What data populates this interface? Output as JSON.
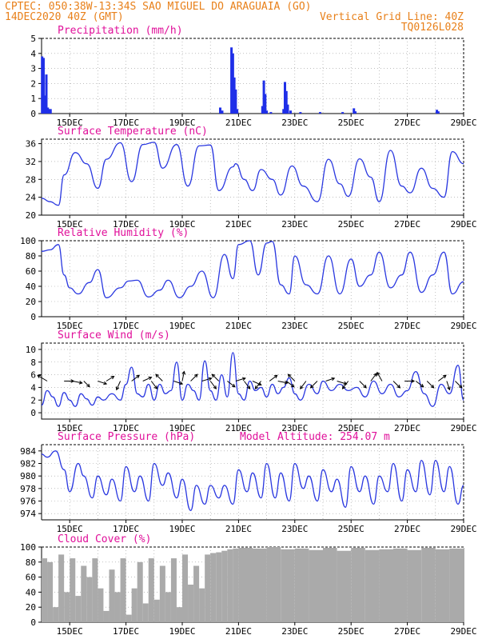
{
  "header": {
    "line1": "CPTEC:  050:38W-13:34S  SAO MIGUEL DO ARAGUAIA (GO)",
    "line2_left": "14DEC2020 40Z (GMT)",
    "line2_right": "Vertical Grid Line: 40Z",
    "line3_right": "TQ0126L028"
  },
  "colors": {
    "header": "#e8801a",
    "panel_title": "#e0109a",
    "line": "#2a38e0",
    "precip_bar": "#1f2fe8",
    "cloud_fill": "#aaaaaa"
  },
  "chart_data": [
    {
      "type": "bar",
      "title": "Precipitation (mm/h)",
      "xlabel": "",
      "ylabel": "",
      "ylim": [
        0,
        5
      ],
      "yticks": [
        "0",
        "1",
        "2",
        "3",
        "4",
        "5"
      ],
      "xticks": [
        "15DEC",
        "17DEC",
        "19DEC",
        "21DEC",
        "23DEC",
        "25DEC",
        "27DEC",
        "29DEC"
      ],
      "xrange_days": [
        14,
        29
      ],
      "grid": true,
      "x_days": [
        14.02,
        14.07,
        14.12,
        14.17,
        14.22,
        14.27,
        14.32,
        20.35,
        20.42,
        20.75,
        20.8,
        20.85,
        20.9,
        20.95,
        21.85,
        21.9,
        21.95,
        22.0,
        22.15,
        22.6,
        22.65,
        22.7,
        22.75,
        22.85,
        23.2,
        23.9,
        24.7,
        25.1,
        25.15,
        28.05,
        28.1
      ],
      "values": [
        3.8,
        3.7,
        1.2,
        2.6,
        0.4,
        0.3,
        0.3,
        0.4,
        0.2,
        4.4,
        4.0,
        2.4,
        1.6,
        0.3,
        0.5,
        2.2,
        1.3,
        0.2,
        0.1,
        0.3,
        2.1,
        1.5,
        0.6,
        0.2,
        0.1,
        0.1,
        0.1,
        0.35,
        0.15,
        0.25,
        0.15
      ]
    },
    {
      "type": "line",
      "title": "Surface Temperature (nC)",
      "ylim": [
        20,
        37
      ],
      "yticks": [
        "20",
        "24",
        "28",
        "32",
        "36"
      ],
      "xticks": [
        "15DEC",
        "17DEC",
        "19DEC",
        "21DEC",
        "23DEC",
        "25DEC",
        "27DEC",
        "29DEC"
      ],
      "xrange_days": [
        14,
        29
      ],
      "grid": true,
      "x_days": [
        14.0,
        14.3,
        14.6,
        14.8,
        15.2,
        15.6,
        16.0,
        16.3,
        16.8,
        17.2,
        17.6,
        18.0,
        18.3,
        18.8,
        19.2,
        19.6,
        20.0,
        20.3,
        20.8,
        20.9,
        21.2,
        21.5,
        21.8,
        22.2,
        22.5,
        22.9,
        23.3,
        23.8,
        24.2,
        24.6,
        24.9,
        25.3,
        25.7,
        26.0,
        26.4,
        26.8,
        27.1,
        27.5,
        27.9,
        28.3,
        28.6,
        29.0
      ],
      "values": [
        23.8,
        23.0,
        22.2,
        29.0,
        34.0,
        31.5,
        26.0,
        32.5,
        36.2,
        27.5,
        35.8,
        36.3,
        30.5,
        35.8,
        26.5,
        35.5,
        35.7,
        25.5,
        30.8,
        31.5,
        28.0,
        25.5,
        30.2,
        28.0,
        24.5,
        31.0,
        26.5,
        23.0,
        32.5,
        27.0,
        24.2,
        32.6,
        28.5,
        23.0,
        34.5,
        26.5,
        25.0,
        30.5,
        26.0,
        24.0,
        34.2,
        31.5
      ]
    },
    {
      "type": "line",
      "title": "Relative Humidity (%)",
      "ylim": [
        0,
        100
      ],
      "yticks": [
        "0",
        "20",
        "40",
        "60",
        "80",
        "100"
      ],
      "xticks": [
        "15DEC",
        "17DEC",
        "19DEC",
        "21DEC",
        "23DEC",
        "25DEC",
        "27DEC",
        "29DEC"
      ],
      "xrange_days": [
        14,
        29
      ],
      "grid": true,
      "x_days": [
        14.0,
        14.3,
        14.6,
        14.8,
        15.0,
        15.3,
        15.7,
        16.0,
        16.3,
        16.8,
        17.1,
        17.4,
        17.8,
        18.2,
        18.5,
        18.9,
        19.3,
        19.7,
        20.1,
        20.5,
        20.8,
        21.0,
        21.4,
        21.7,
        22.0,
        22.2,
        22.5,
        22.8,
        23.0,
        23.4,
        23.8,
        24.2,
        24.6,
        25.0,
        25.3,
        25.7,
        26.0,
        26.4,
        26.8,
        27.1,
        27.5,
        27.9,
        28.3,
        28.6,
        29.0
      ],
      "values": [
        86,
        88,
        95,
        55,
        38,
        30,
        45,
        62,
        25,
        38,
        47,
        48,
        26,
        35,
        48,
        25,
        40,
        60,
        25,
        82,
        50,
        95,
        100,
        55,
        97,
        99,
        42,
        30,
        80,
        42,
        30,
        80,
        30,
        76,
        40,
        55,
        85,
        38,
        55,
        85,
        32,
        55,
        85,
        30,
        46
      ]
    },
    {
      "type": "line",
      "title": "Surface Wind (m/s)",
      "ylim": [
        -1,
        11
      ],
      "yticks": [
        "0",
        "2",
        "4",
        "6",
        "8",
        "10"
      ],
      "xticks": [
        "15DEC",
        "17DEC",
        "19DEC",
        "21DEC",
        "23DEC",
        "25DEC",
        "27DEC",
        "29DEC"
      ],
      "xrange_days": [
        14,
        29
      ],
      "grid": true,
      "x_days": [
        14.0,
        14.2,
        14.4,
        14.6,
        14.8,
        15.0,
        15.2,
        15.4,
        15.6,
        15.8,
        16.0,
        16.2,
        16.5,
        16.8,
        17.0,
        17.2,
        17.4,
        17.6,
        17.8,
        18.0,
        18.2,
        18.4,
        18.6,
        18.8,
        19.0,
        19.2,
        19.4,
        19.6,
        19.8,
        20.0,
        20.2,
        20.4,
        20.6,
        20.8,
        21.0,
        21.2,
        21.4,
        21.6,
        21.8,
        22.0,
        22.2,
        22.4,
        22.6,
        22.8,
        23.0,
        23.2,
        23.5,
        23.8,
        24.0,
        24.3,
        24.6,
        24.9,
        25.2,
        25.5,
        25.8,
        26.1,
        26.4,
        26.7,
        27.0,
        27.3,
        27.6,
        27.9,
        28.2,
        28.5,
        28.8,
        29.0
      ],
      "values": [
        1.2,
        3.5,
        2.5,
        1.0,
        3.2,
        2.0,
        1.0,
        3.0,
        2.2,
        1.2,
        2.5,
        2.0,
        3.0,
        2.0,
        4.5,
        7.2,
        3.0,
        2.5,
        4.5,
        2.0,
        4.5,
        3.0,
        3.5,
        8.0,
        2.0,
        4.5,
        3.5,
        2.0,
        8.2,
        3.5,
        2.0,
        6.0,
        2.5,
        9.5,
        3.0,
        2.0,
        5.0,
        3.5,
        4.0,
        2.5,
        4.5,
        3.0,
        4.0,
        5.5,
        3.0,
        2.0,
        4.5,
        3.0,
        5.0,
        3.5,
        4.5,
        3.5,
        4.0,
        2.5,
        5.0,
        3.0,
        4.5,
        2.5,
        3.5,
        6.5,
        3.0,
        1.0,
        4.5,
        3.0,
        7.5,
        2.0
      ],
      "arrows": [
        {
          "day": 14.2,
          "dx": -1,
          "dy": -0.6
        },
        {
          "day": 14.8,
          "dx": 1,
          "dy": 0
        },
        {
          "day": 15.1,
          "dx": 1,
          "dy": 0.2
        },
        {
          "day": 15.5,
          "dx": 0.6,
          "dy": 0.6
        },
        {
          "day": 16.0,
          "dx": 0.9,
          "dy": 0.3
        },
        {
          "day": 16.3,
          "dx": 0.8,
          "dy": -0.5
        },
        {
          "day": 16.8,
          "dx": -0.4,
          "dy": 0.9
        },
        {
          "day": 17.2,
          "dx": 0.8,
          "dy": -0.6
        },
        {
          "day": 17.6,
          "dx": 0.9,
          "dy": -0.4
        },
        {
          "day": 17.9,
          "dx": 0.6,
          "dy": 0.8
        },
        {
          "day": 18.3,
          "dx": -0.7,
          "dy": -0.7
        },
        {
          "day": 18.7,
          "dx": 0.9,
          "dy": 0.3
        },
        {
          "day": 19.0,
          "dx": 0.2,
          "dy": -1
        },
        {
          "day": 19.3,
          "dx": 0.7,
          "dy": -0.7
        },
        {
          "day": 19.7,
          "dx": 1,
          "dy": -0.3
        },
        {
          "day": 20.0,
          "dx": 0.6,
          "dy": 0.8
        },
        {
          "day": 20.3,
          "dx": -0.7,
          "dy": -0.7
        },
        {
          "day": 20.6,
          "dx": 0.8,
          "dy": 0.6
        },
        {
          "day": 20.9,
          "dx": 1,
          "dy": -0.3
        },
        {
          "day": 21.2,
          "dx": 0.6,
          "dy": 0.8
        },
        {
          "day": 21.5,
          "dx": 0.9,
          "dy": 0.4
        },
        {
          "day": 21.8,
          "dx": -0.6,
          "dy": 0.8
        },
        {
          "day": 22.1,
          "dx": 0.8,
          "dy": -0.6
        },
        {
          "day": 22.4,
          "dx": 1,
          "dy": 0.2
        },
        {
          "day": 22.7,
          "dx": 0.8,
          "dy": 0.6
        },
        {
          "day": 23.0,
          "dx": -0.7,
          "dy": -0.7
        },
        {
          "day": 23.4,
          "dx": -0.6,
          "dy": 0.8
        },
        {
          "day": 23.8,
          "dx": -0.7,
          "dy": 0.7
        },
        {
          "day": 24.1,
          "dx": 0.9,
          "dy": -0.3
        },
        {
          "day": 24.5,
          "dx": 1,
          "dy": 0.3
        },
        {
          "day": 24.9,
          "dx": -0.6,
          "dy": 0.8
        },
        {
          "day": 25.3,
          "dx": 0.7,
          "dy": 0.7
        },
        {
          "day": 25.7,
          "dx": 0.6,
          "dy": -0.8
        },
        {
          "day": 26.1,
          "dx": -0.5,
          "dy": -0.9
        },
        {
          "day": 26.5,
          "dx": 0.7,
          "dy": 0.7
        },
        {
          "day": 26.9,
          "dx": 1,
          "dy": 0
        },
        {
          "day": 27.3,
          "dx": 0.8,
          "dy": 0.6
        },
        {
          "day": 27.7,
          "dx": 0.7,
          "dy": 0.7
        },
        {
          "day": 28.1,
          "dx": 0.8,
          "dy": -0.6
        },
        {
          "day": 28.4,
          "dx": 0.3,
          "dy": 0.9
        },
        {
          "day": 28.7,
          "dx": 0.7,
          "dy": 0.7
        }
      ]
    },
    {
      "type": "line",
      "title": "Surface Pressure (hPa)",
      "annotation": "Model Altitude: 254.07 m",
      "ylim": [
        973,
        985
      ],
      "yticks": [
        "974",
        "976",
        "978",
        "980",
        "982",
        "984"
      ],
      "xticks": [
        "15DEC",
        "17DEC",
        "19DEC",
        "21DEC",
        "23DEC",
        "25DEC",
        "27DEC",
        "29DEC"
      ],
      "xrange_days": [
        14,
        29
      ],
      "grid": true,
      "x_days": [
        14.0,
        14.2,
        14.5,
        14.8,
        15.0,
        15.3,
        15.5,
        15.8,
        16.0,
        16.3,
        16.5,
        16.8,
        17.0,
        17.3,
        17.5,
        17.8,
        18.0,
        18.3,
        18.5,
        18.8,
        19.0,
        19.3,
        19.5,
        19.8,
        20.0,
        20.3,
        20.5,
        20.8,
        21.0,
        21.3,
        21.5,
        21.8,
        22.0,
        22.3,
        22.5,
        22.8,
        23.0,
        23.3,
        23.5,
        23.8,
        24.0,
        24.3,
        24.5,
        24.8,
        25.0,
        25.3,
        25.5,
        25.8,
        26.0,
        26.3,
        26.5,
        26.8,
        27.0,
        27.3,
        27.5,
        27.8,
        28.0,
        28.3,
        28.5,
        28.8,
        29.0
      ],
      "values": [
        983.5,
        983.0,
        984.0,
        981.0,
        977.5,
        982.0,
        980.0,
        976.5,
        980.0,
        977.0,
        979.5,
        976.0,
        981.5,
        977.5,
        980.0,
        976.0,
        982.0,
        978.5,
        980.5,
        976.5,
        979.5,
        974.5,
        978.5,
        975.5,
        978.5,
        976.5,
        978.5,
        975.5,
        981.0,
        977.5,
        980.5,
        976.5,
        982.0,
        976.5,
        980.5,
        976.0,
        982.0,
        978.0,
        980.0,
        976.0,
        981.0,
        977.5,
        979.5,
        975.0,
        981.5,
        977.5,
        980.0,
        975.5,
        980.0,
        977.5,
        982.0,
        976.0,
        981.0,
        977.5,
        982.5,
        977.0,
        982.5,
        977.5,
        981.5,
        975.5,
        978.5
      ]
    },
    {
      "type": "area",
      "title": "Cloud Cover (%)",
      "ylim": [
        0,
        100
      ],
      "yticks": [
        "0",
        "20",
        "40",
        "60",
        "80",
        "100"
      ],
      "xticks": [
        "15DEC",
        "17DEC",
        "19DEC",
        "21DEC",
        "23DEC",
        "25DEC",
        "27DEC",
        "29DEC"
      ],
      "xrange_days": [
        14,
        29
      ],
      "grid": true,
      "x_days": [
        14.0,
        14.2,
        14.4,
        14.6,
        14.8,
        15.0,
        15.2,
        15.4,
        15.6,
        15.8,
        16.0,
        16.2,
        16.4,
        16.6,
        16.8,
        17.0,
        17.2,
        17.4,
        17.6,
        17.8,
        18.0,
        18.2,
        18.4,
        18.6,
        18.8,
        19.0,
        19.2,
        19.4,
        19.6,
        19.8,
        20.0,
        20.2,
        20.4,
        20.6,
        20.8,
        21.0,
        21.5,
        22.0,
        22.5,
        23.0,
        23.5,
        24.0,
        24.5,
        25.0,
        25.5,
        26.0,
        26.5,
        27.0,
        27.5,
        28.0,
        28.5,
        29.0
      ],
      "values": [
        85,
        80,
        20,
        90,
        40,
        85,
        35,
        75,
        60,
        85,
        45,
        15,
        70,
        40,
        85,
        10,
        45,
        80,
        25,
        85,
        30,
        75,
        40,
        85,
        20,
        90,
        50,
        75,
        45,
        90,
        92,
        93,
        95,
        97,
        98,
        99,
        98,
        100,
        97,
        98,
        96,
        99,
        95,
        99,
        96,
        97,
        98,
        96,
        99,
        97,
        98,
        99
      ]
    }
  ]
}
